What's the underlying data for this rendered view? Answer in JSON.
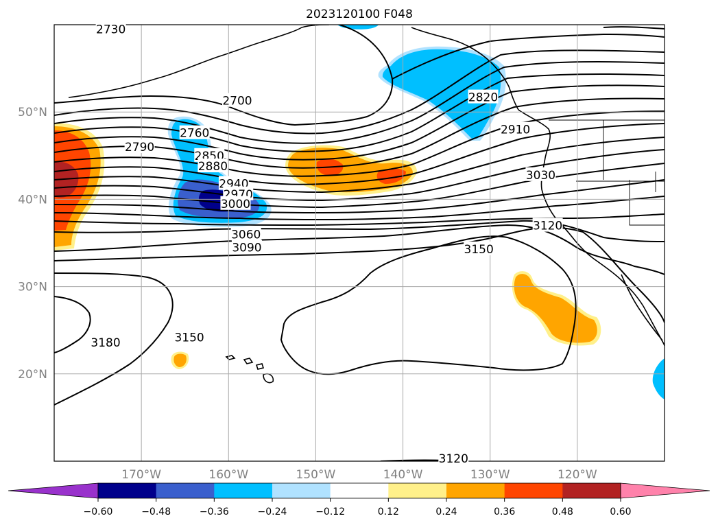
{
  "chart_data": {
    "type": "contour-map",
    "title": "2023120100 F048",
    "map_extent": {
      "lon": [
        -180,
        -110
      ],
      "lat": [
        10,
        60
      ]
    },
    "grid": true,
    "lat_labels": [
      {
        "value": 50,
        "text": "50°N"
      },
      {
        "value": 40,
        "text": "40°N"
      },
      {
        "value": 30,
        "text": "30°N"
      },
      {
        "value": 20,
        "text": "20°N"
      }
    ],
    "lon_labels": [
      {
        "value": -170,
        "text": "170°W"
      },
      {
        "value": -160,
        "text": "160°W"
      },
      {
        "value": -150,
        "text": "150°W"
      },
      {
        "value": -140,
        "text": "140°W"
      },
      {
        "value": -130,
        "text": "130°W"
      },
      {
        "value": -120,
        "text": "120°W"
      }
    ],
    "contour_labels": [
      {
        "text": "2730",
        "lon": -173.5,
        "lat": 59.5
      },
      {
        "text": "2700",
        "lon": -159.0,
        "lat": 51.3
      },
      {
        "text": "2820",
        "lon": -130.8,
        "lat": 51.7
      },
      {
        "text": "2760",
        "lon": -163.9,
        "lat": 47.6
      },
      {
        "text": "2910",
        "lon": -127.1,
        "lat": 48.0
      },
      {
        "text": "2790",
        "lon": -170.2,
        "lat": 46.0
      },
      {
        "text": "2850",
        "lon": -162.2,
        "lat": 45.0
      },
      {
        "text": "2880",
        "lon": -161.8,
        "lat": 43.8
      },
      {
        "text": "3030",
        "lon": -124.2,
        "lat": 42.8
      },
      {
        "text": "2940",
        "lon": -159.4,
        "lat": 41.8
      },
      {
        "text": "2970",
        "lon": -158.9,
        "lat": 40.6
      },
      {
        "text": "3000",
        "lon": -159.2,
        "lat": 39.5
      },
      {
        "text": "3120",
        "lon": -123.4,
        "lat": 37.0
      },
      {
        "text": "3060",
        "lon": -158.0,
        "lat": 36.0
      },
      {
        "text": "3090",
        "lon": -157.9,
        "lat": 34.5
      },
      {
        "text": "3150",
        "lon": -131.3,
        "lat": 34.3
      },
      {
        "text": "3150",
        "lon": -164.5,
        "lat": 24.2
      },
      {
        "text": "3180",
        "lon": -174.1,
        "lat": 23.6
      },
      {
        "text": "3120",
        "lon": -134.2,
        "lat": 10.3
      }
    ],
    "colorbar": {
      "ticks": [
        -0.6,
        -0.48,
        -0.36,
        -0.24,
        -0.12,
        0.12,
        0.24,
        0.36,
        0.48,
        0.6
      ],
      "tick_labels": [
        "−0.60",
        "−0.48",
        "−0.36",
        "−0.24",
        "−0.12",
        "0.12",
        "0.24",
        "0.36",
        "0.48",
        "0.60"
      ],
      "colors": [
        "#9932cc",
        "#00008b",
        "#3a5fcd",
        "#00bfff",
        "#b0e2ff",
        "#ffffff",
        "#fff08a",
        "#ffa500",
        "#ff4500",
        "#b22222",
        "#ff82ab"
      ],
      "extend": "both"
    }
  }
}
